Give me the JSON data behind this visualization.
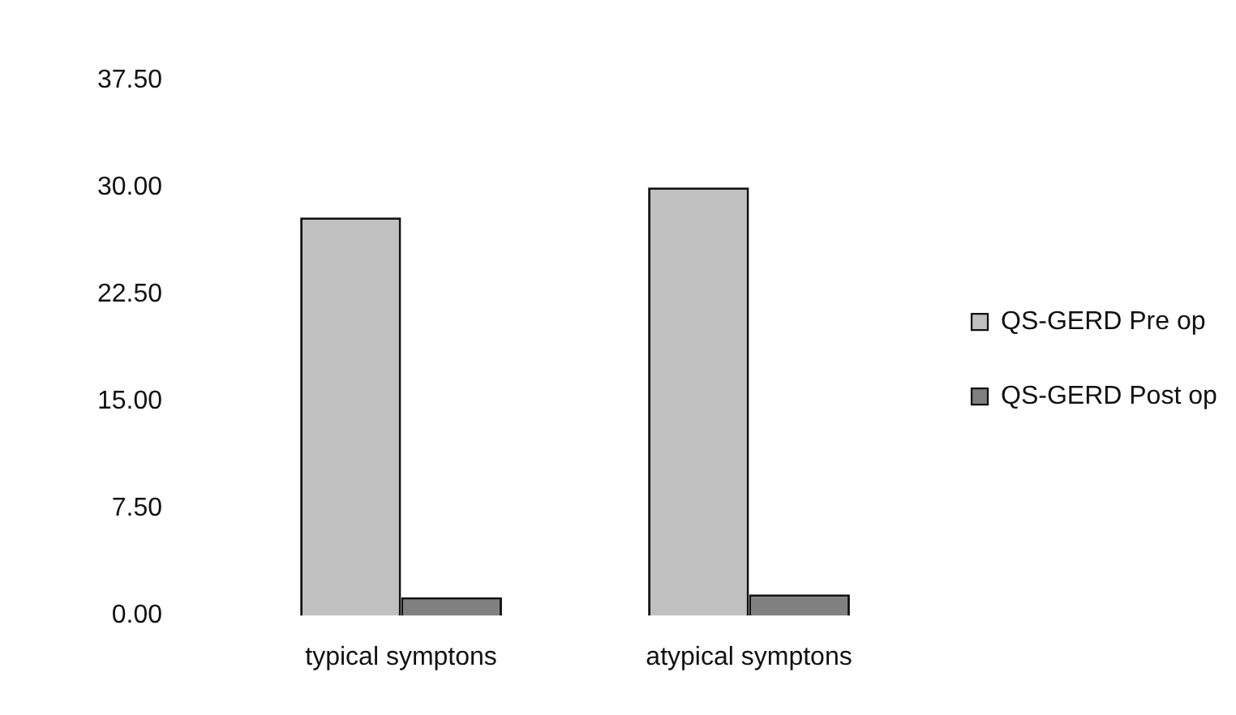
{
  "chart_data": {
    "type": "bar",
    "categories": [
      "typical symptons",
      "atypical symptons"
    ],
    "series": [
      {
        "name": "QS-GERD Pre op",
        "color": "#c0c0c0",
        "values": [
          27.9,
          30.0
        ]
      },
      {
        "name": "QS-GERD Post op",
        "color": "#808080",
        "values": [
          1.3,
          1.5
        ]
      }
    ],
    "ylim": [
      0,
      37.5
    ],
    "yticks": [
      {
        "value": 0,
        "label": "0.00"
      },
      {
        "value": 7.5,
        "label": "7.50"
      },
      {
        "value": 15,
        "label": "15.00"
      },
      {
        "value": 22.5,
        "label": "22.50"
      },
      {
        "value": 30,
        "label": "30.00"
      },
      {
        "value": 37.5,
        "label": "37.50"
      }
    ],
    "grid": false,
    "legend": "right"
  }
}
